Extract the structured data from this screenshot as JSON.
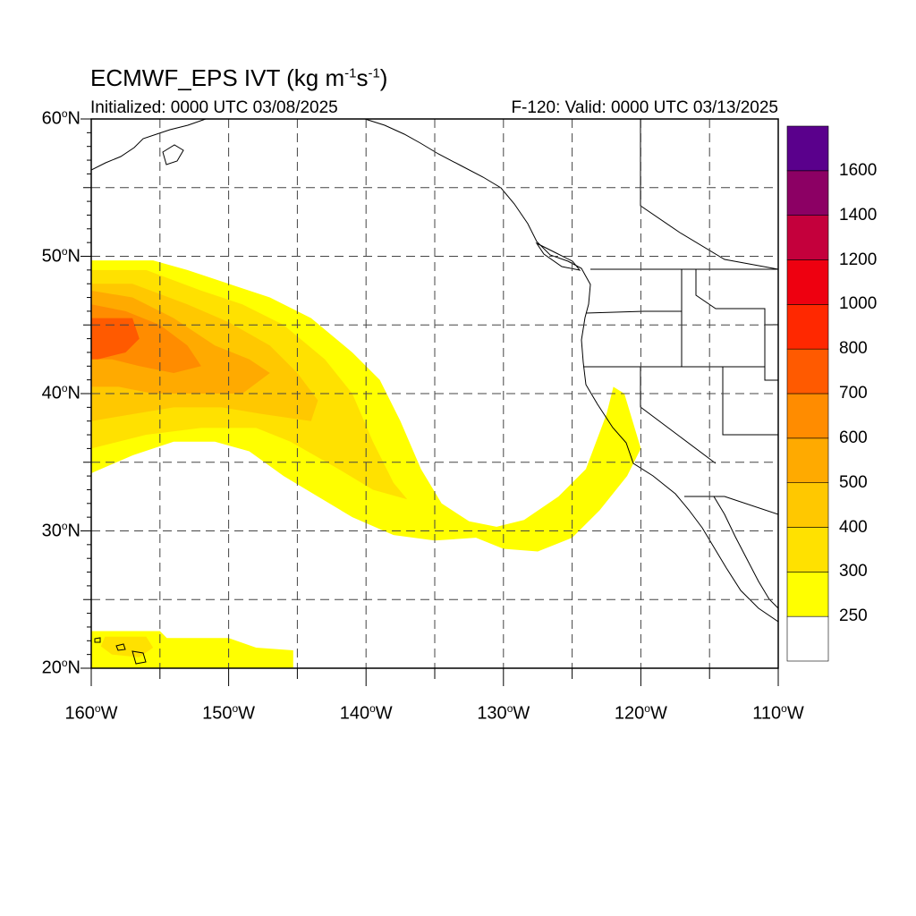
{
  "header": {
    "title_main": "ECMWF_EPS IVT (kg m",
    "title_exp1": "-1",
    "title_mid": "s",
    "title_exp2": "-1",
    "title_end": ")",
    "initialized": "Initialized: 0000 UTC 03/08/2025",
    "valid": "F-120: Valid: 0000 UTC 03/13/2025"
  },
  "map": {
    "lon_range": [
      -160,
      -110
    ],
    "lat_range": [
      20,
      60
    ],
    "grid": "dashed",
    "lat_ticks": [
      {
        "value": 60,
        "num": "60",
        "dir": "N"
      },
      {
        "value": 50,
        "num": "50",
        "dir": "N"
      },
      {
        "value": 40,
        "num": "40",
        "dir": "N"
      },
      {
        "value": 30,
        "num": "30",
        "dir": "N"
      },
      {
        "value": 20,
        "num": "20",
        "dir": "N"
      }
    ],
    "lon_ticks": [
      {
        "value": -160,
        "num": "160",
        "dir": "W"
      },
      {
        "value": -150,
        "num": "150",
        "dir": "W"
      },
      {
        "value": -140,
        "num": "140",
        "dir": "W"
      },
      {
        "value": -130,
        "num": "130",
        "dir": "W"
      },
      {
        "value": -120,
        "num": "120",
        "dir": "W"
      },
      {
        "value": -110,
        "num": "110",
        "dir": "W"
      }
    ]
  },
  "colorbar": {
    "levels": [
      250,
      300,
      400,
      500,
      600,
      700,
      800,
      1000,
      1200,
      1400,
      1600
    ],
    "labels": [
      "250",
      "300",
      "400",
      "500",
      "600",
      "700",
      "800",
      "1000",
      "1200",
      "1400",
      "1600"
    ],
    "colors": [
      "#ffffff",
      "#ffff00",
      "#ffe100",
      "#ffc800",
      "#ffaa00",
      "#ff8c00",
      "#ff5a00",
      "#ff2800",
      "#ee0010",
      "#c4003c",
      "#8c0064",
      "#5a008c"
    ]
  },
  "chart_data": {
    "type": "heatmap",
    "variable": "IVT",
    "units": "kg m-1 s-1",
    "regions": [
      {
        "level": 250,
        "poly": [
          [
            -160,
            49.7
          ],
          [
            -155.5,
            49.7
          ],
          [
            -153,
            49
          ],
          [
            -150,
            48
          ],
          [
            -147,
            47
          ],
          [
            -144,
            45.5
          ],
          [
            -141,
            43
          ],
          [
            -139,
            41
          ],
          [
            -137.5,
            38
          ],
          [
            -136,
            34.5
          ],
          [
            -134.5,
            32
          ],
          [
            -132.5,
            30.7
          ],
          [
            -130.5,
            30.3
          ],
          [
            -128.5,
            30.8
          ],
          [
            -126,
            32.5
          ],
          [
            -124,
            34.5
          ],
          [
            -122.5,
            38.5
          ],
          [
            -122,
            40.5
          ],
          [
            -121.2,
            40
          ],
          [
            -120,
            36
          ],
          [
            -121,
            34
          ],
          [
            -123,
            31.5
          ],
          [
            -125,
            29.5
          ],
          [
            -127.5,
            28.5
          ],
          [
            -130,
            28.7
          ],
          [
            -132,
            29.5
          ],
          [
            -135,
            29.3
          ],
          [
            -138,
            29.7
          ],
          [
            -141,
            31
          ],
          [
            -143.5,
            32.5
          ],
          [
            -146,
            34
          ],
          [
            -148.5,
            35.8
          ],
          [
            -151,
            36.5
          ],
          [
            -154,
            36.5
          ],
          [
            -157,
            35.5
          ],
          [
            -160,
            34.2
          ]
        ]
      },
      {
        "level": 300,
        "poly": [
          [
            -160,
            49
          ],
          [
            -156,
            49
          ],
          [
            -152,
            47.5
          ],
          [
            -149,
            46.5
          ],
          [
            -146,
            45
          ],
          [
            -143,
            42.5
          ],
          [
            -141,
            40
          ],
          [
            -139.5,
            36.5
          ],
          [
            -138,
            33.5
          ],
          [
            -137,
            32.3
          ],
          [
            -139.5,
            33
          ],
          [
            -142,
            34.5
          ],
          [
            -145.5,
            36.5
          ],
          [
            -148,
            37.5
          ],
          [
            -152,
            37.5
          ],
          [
            -156,
            37
          ],
          [
            -160,
            36
          ]
        ]
      },
      {
        "level": 400,
        "poly": [
          [
            -160,
            48
          ],
          [
            -157,
            48
          ],
          [
            -153,
            46.5
          ],
          [
            -150,
            45.2
          ],
          [
            -147,
            43.5
          ],
          [
            -145,
            41.5
          ],
          [
            -143.5,
            39.5
          ],
          [
            -144,
            38
          ],
          [
            -147.5,
            38.5
          ],
          [
            -150.5,
            39
          ],
          [
            -154,
            39
          ],
          [
            -157,
            38.5
          ],
          [
            -160,
            38
          ]
        ]
      },
      {
        "level": 500,
        "poly": [
          [
            -160,
            47.5
          ],
          [
            -157,
            47
          ],
          [
            -154,
            45.5
          ],
          [
            -151,
            43.5
          ],
          [
            -148.5,
            42.5
          ],
          [
            -147,
            41.5
          ],
          [
            -149,
            40
          ],
          [
            -152,
            40
          ],
          [
            -155.5,
            40
          ],
          [
            -158,
            40.5
          ],
          [
            -160,
            40.5
          ]
        ]
      },
      {
        "level": 600,
        "poly": [
          [
            -160,
            46.5
          ],
          [
            -157.5,
            46
          ],
          [
            -155,
            45
          ],
          [
            -153,
            43.5
          ],
          [
            -152,
            42
          ],
          [
            -154,
            41.5
          ],
          [
            -156.5,
            42
          ],
          [
            -158.5,
            42.5
          ],
          [
            -160,
            42.5
          ]
        ]
      },
      {
        "level": 700,
        "poly": [
          [
            -160,
            45.5
          ],
          [
            -157,
            45.5
          ],
          [
            -156.5,
            44
          ],
          [
            -157.5,
            43
          ],
          [
            -159.5,
            42.5
          ],
          [
            -160,
            42.5
          ]
        ]
      },
      {
        "level": 250,
        "poly": [
          [
            -160,
            22.7
          ],
          [
            -155,
            22.7
          ],
          [
            -154.5,
            22.2
          ],
          [
            -150,
            22.2
          ],
          [
            -148,
            21.5
          ],
          [
            -145.3,
            21.3
          ],
          [
            -145.3,
            20
          ],
          [
            -160,
            20
          ]
        ]
      },
      {
        "level": 300,
        "poly": [
          [
            -159,
            22.3
          ],
          [
            -156,
            22.3
          ],
          [
            -155.5,
            21.5
          ],
          [
            -156.5,
            20.8
          ],
          [
            -158.5,
            21
          ],
          [
            -159.3,
            21.6
          ]
        ]
      }
    ]
  }
}
